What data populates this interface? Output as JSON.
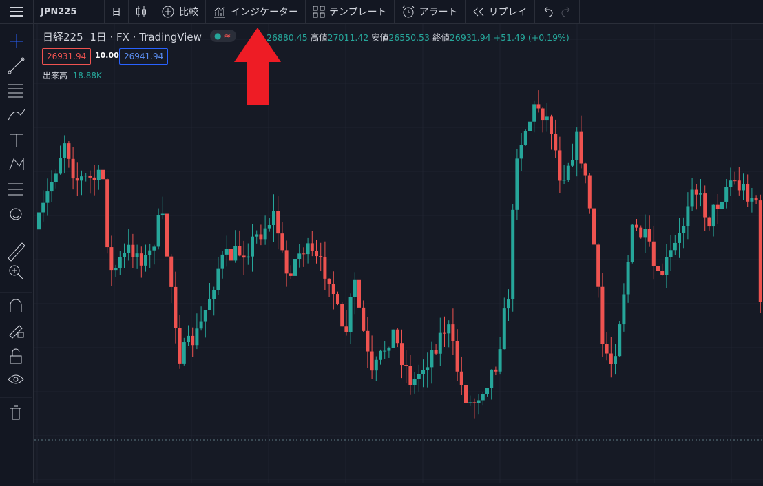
{
  "toolbar": {
    "symbol": "JPN225",
    "interval": "日",
    "compare": "比較",
    "indicators": "インジケーター",
    "templates": "テンプレート",
    "alert": "アラート",
    "replay": "リプレイ"
  },
  "legend": {
    "name": "日経225",
    "interval": "1日",
    "exchange": "FX",
    "source": "TradingView",
    "badge": "≈",
    "open_value": "26880.45",
    "high_label": "高値",
    "high_value": "27011.42",
    "low_label": "安値",
    "low_value": "26550.53",
    "close_label": "終値",
    "close_value": "26931.94",
    "change": "+51.49 (+0.19%)",
    "bid": "26931.94",
    "spread": "10.00",
    "ask": "26941.94",
    "volume_label": "出来高",
    "volume_value": "18.88K"
  }
}
